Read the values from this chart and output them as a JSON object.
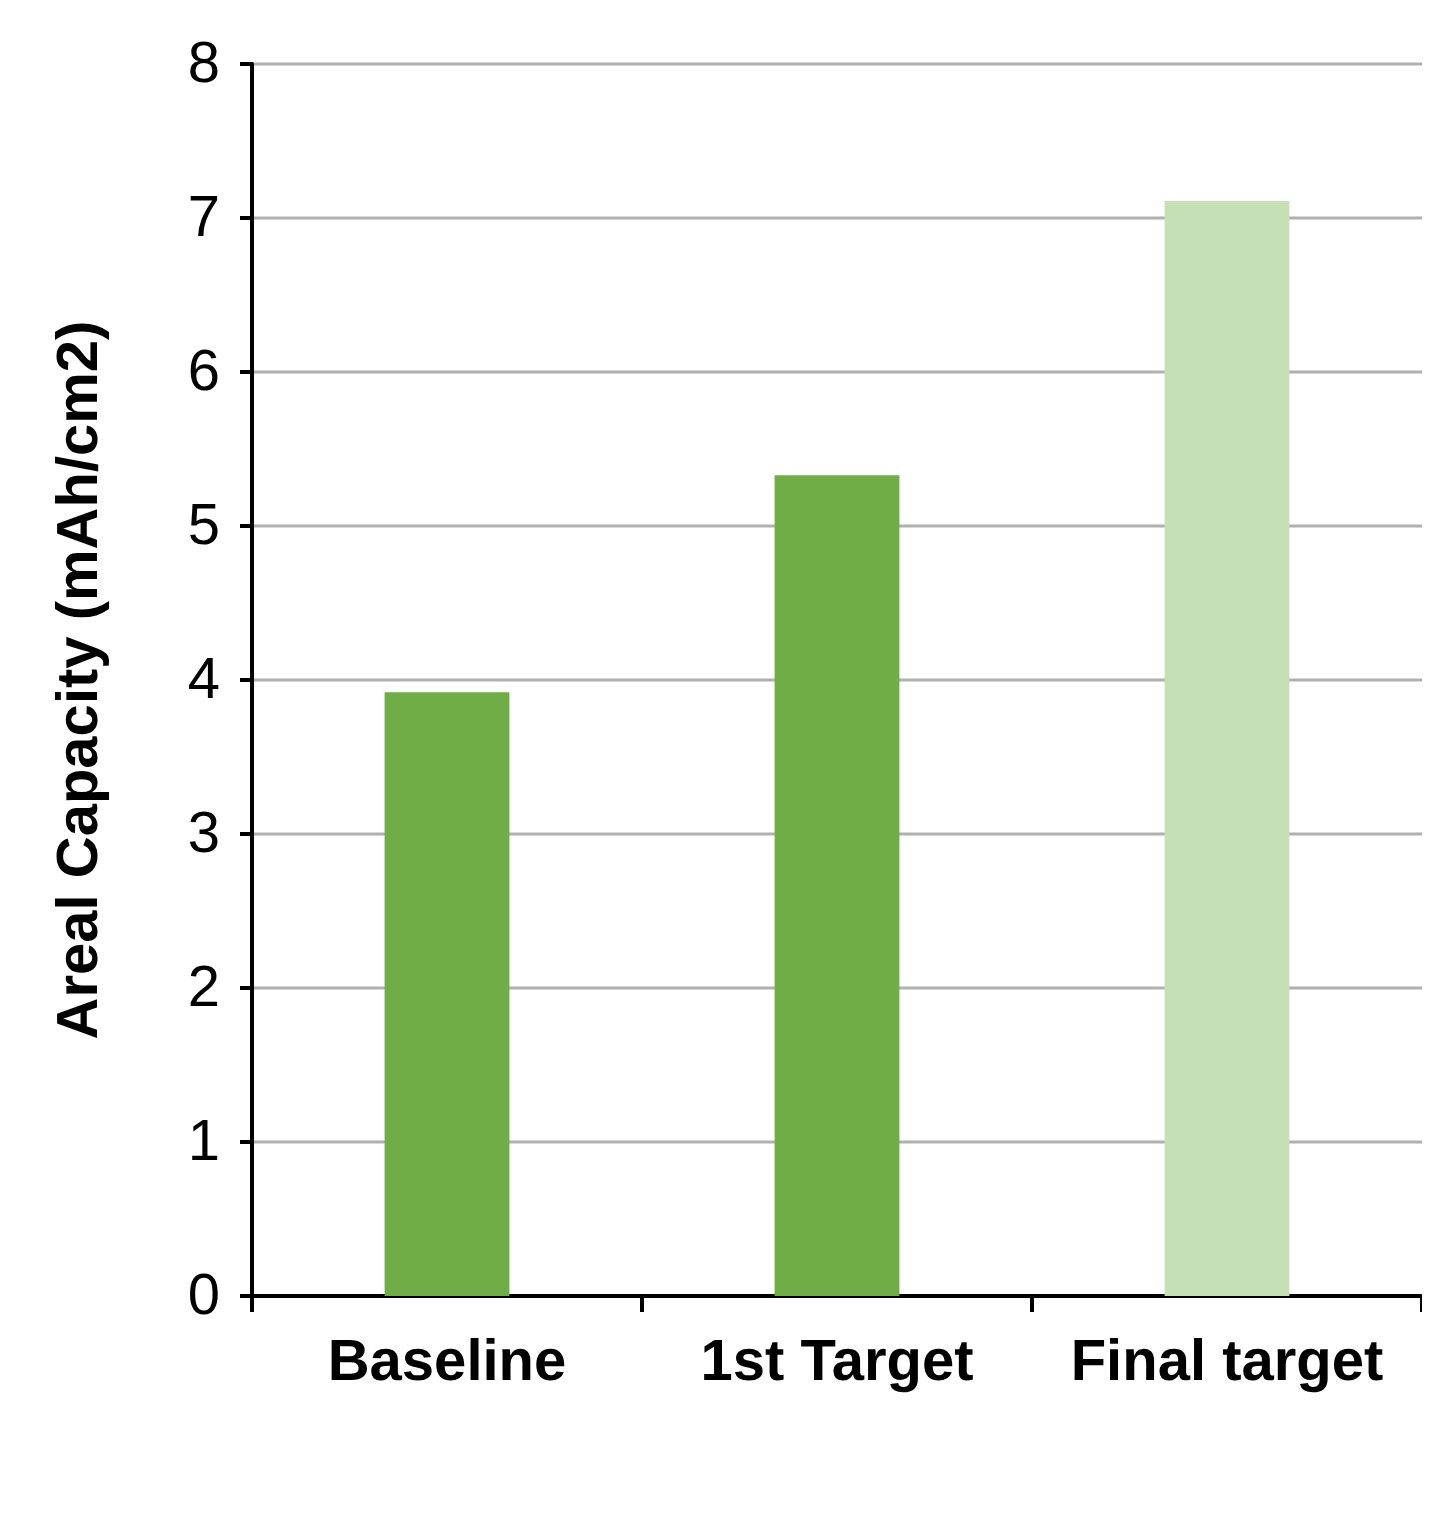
{
  "chart_data": {
    "type": "bar",
    "ylabel": "Areal Capacity (mAh/cm2)",
    "categories": [
      "Baseline",
      "1st Target",
      "Final target"
    ],
    "values": [
      3.92,
      5.33,
      7.11
    ],
    "colors": [
      "#70ad47",
      "#70ad47",
      "#c5e0b4"
    ],
    "ylim": [
      0,
      8
    ],
    "yticks": [
      0,
      1,
      2,
      3,
      4,
      5,
      6,
      7,
      8
    ],
    "grid": "y"
  }
}
